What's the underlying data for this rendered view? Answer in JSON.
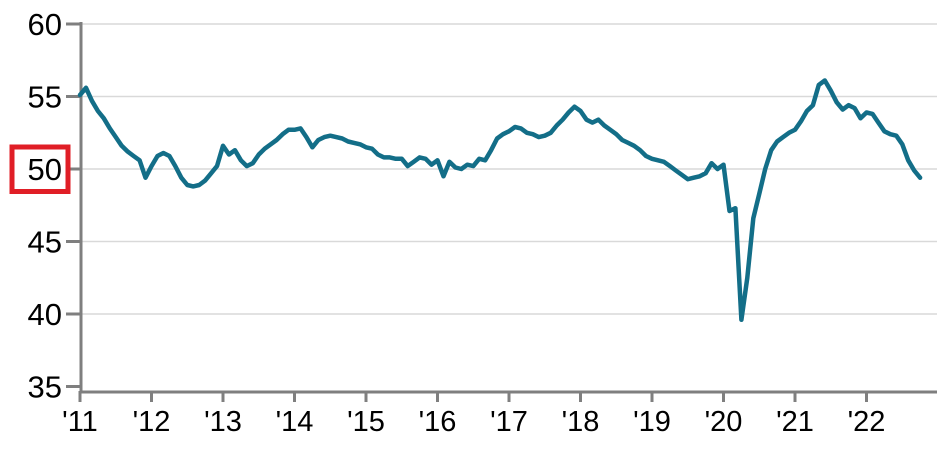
{
  "chart_data": {
    "type": "line",
    "y_axis": {
      "min": 35,
      "max": 60,
      "tick_step": 5,
      "tick_labels": [
        "35",
        "40",
        "45",
        "50",
        "55",
        "60"
      ],
      "highlighted_tick": "50",
      "grid": "horizontal-on"
    },
    "x_axis": {
      "unit": "year",
      "tick_labels": [
        "'11",
        "'12",
        "'13",
        "'14",
        "'15",
        "'16",
        "'17",
        "'18",
        "'19",
        "'20",
        "'21",
        "'22"
      ],
      "points_per_year": 12
    },
    "series": [
      {
        "name": "diffusion-index-monthly",
        "cadence": "monthly",
        "first_point": "Jan 2011",
        "last_point": "Oct 2022",
        "values": [
          55.1,
          55.6,
          54.7,
          54.0,
          53.5,
          52.8,
          52.2,
          51.6,
          51.2,
          50.9,
          50.6,
          49.4,
          50.2,
          50.9,
          51.1,
          50.9,
          50.2,
          49.4,
          48.9,
          48.8,
          48.9,
          49.2,
          49.7,
          50.2,
          51.6,
          51.0,
          51.3,
          50.6,
          50.2,
          50.4,
          51.0,
          51.4,
          51.7,
          52.0,
          52.4,
          52.7,
          52.7,
          52.8,
          52.2,
          51.5,
          52.0,
          52.2,
          52.3,
          52.2,
          52.1,
          51.9,
          51.8,
          51.7,
          51.5,
          51.4,
          51.0,
          50.8,
          50.8,
          50.7,
          50.7,
          50.2,
          50.5,
          50.8,
          50.7,
          50.3,
          50.6,
          49.5,
          50.5,
          50.1,
          50.0,
          50.3,
          50.2,
          50.7,
          50.6,
          51.3,
          52.1,
          52.4,
          52.6,
          52.9,
          52.8,
          52.5,
          52.4,
          52.2,
          52.3,
          52.5,
          53.0,
          53.4,
          53.9,
          54.3,
          54.0,
          53.4,
          53.2,
          53.4,
          53.0,
          52.7,
          52.4,
          52.0,
          51.8,
          51.6,
          51.3,
          50.9,
          50.7,
          50.6,
          50.5,
          50.2,
          49.9,
          49.6,
          49.3,
          49.4,
          49.5,
          49.7,
          50.4,
          50.0,
          50.3,
          47.1,
          47.3,
          39.6,
          42.5,
          46.6,
          48.3,
          50.0,
          51.3,
          51.9,
          52.2,
          52.5,
          52.7,
          53.3,
          54.0,
          54.4,
          55.8,
          56.1,
          55.4,
          54.6,
          54.1,
          54.4,
          54.2,
          53.5,
          53.9,
          53.8,
          53.2,
          52.6,
          52.4,
          52.3,
          51.7,
          50.6,
          49.9,
          49.4
        ]
      }
    ],
    "styles": {
      "line_color": "#136e88",
      "axis_color": "#7f7f7f",
      "grid_color": "#d9d9d9",
      "highlight_box_color": "#e01e26",
      "label_color": "#000000",
      "background_color": "#ffffff"
    }
  }
}
